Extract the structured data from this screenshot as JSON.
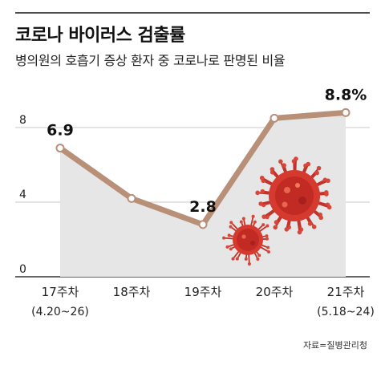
{
  "chart_data": {
    "type": "area",
    "title": "코로나 바이러스 검출률",
    "subtitle": "병의원의 호흡기 증상 환자 중 코로나로 판명된 비율",
    "categories": [
      "17주차",
      "18주차",
      "19주차",
      "20주차",
      "21주차"
    ],
    "category_sublabels": [
      "(4.20~26)",
      "",
      "",
      "",
      "(5.18~24)"
    ],
    "values": [
      6.9,
      4.2,
      2.8,
      8.5,
      8.8
    ],
    "data_labels": [
      "6.9",
      "",
      "2.8",
      "",
      "8.8%"
    ],
    "yticks": [
      "0",
      "4",
      "8"
    ],
    "ylim": [
      0,
      10
    ],
    "grid": true,
    "line_color": "#b89078",
    "fill_color": "#e6e6e6",
    "source": "자료=질병관리청"
  }
}
